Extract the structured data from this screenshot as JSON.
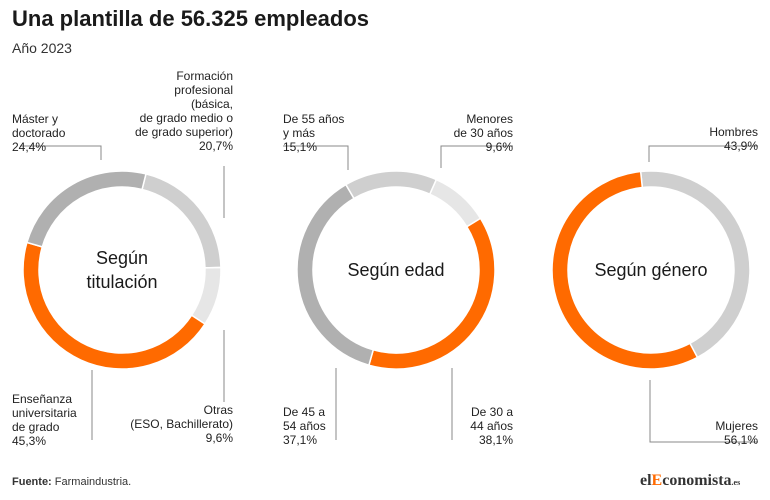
{
  "title": "Una plantilla de 56.325 empleados",
  "subtitle": "Año 2023",
  "source_label": "Fuente:",
  "source_text": "Farmaindustria.",
  "logo": {
    "prefix": "el",
    "accent": "E",
    "rest": "conomista",
    "suffix": ".es"
  },
  "colors": {
    "orange": "#ff6a00",
    "gray_dark": "#b0b0b0",
    "gray_mid": "#cfcfcf",
    "gray_light": "#e6e6e6",
    "leader_line": "#888888"
  },
  "chart_data": [
    {
      "type": "pie",
      "style": "donut",
      "center_label": [
        "Según",
        "titulación"
      ],
      "slices": [
        {
          "lines": [
            "Formación",
            "profesional",
            "(básica,",
            "de grado medio o",
            "de grado superior)",
            "20,7%"
          ],
          "value": 20.7,
          "color": "#cfcfcf"
        },
        {
          "lines": [
            "Otras",
            "(ESO, Bachillerato)",
            "9,6%"
          ],
          "value": 9.6,
          "color": "#e6e6e6"
        },
        {
          "lines": [
            "Enseñanza",
            "universitaria",
            "de grado",
            "45,3%"
          ],
          "value": 45.3,
          "color": "#ff6a00"
        },
        {
          "lines": [
            "Máster y",
            "doctorado",
            "24,4%"
          ],
          "value": 24.4,
          "color": "#b0b0b0"
        }
      ]
    },
    {
      "type": "pie",
      "style": "donut",
      "center_label": [
        "Según edad"
      ],
      "slices": [
        {
          "lines": [
            "Menores",
            "de 30 años",
            "9,6%"
          ],
          "value": 9.6,
          "color": "#e6e6e6"
        },
        {
          "lines": [
            "De 30 a",
            "44 años",
            "38,1%"
          ],
          "value": 38.1,
          "color": "#ff6a00"
        },
        {
          "lines": [
            "De 45 a",
            "54 años",
            "37,1%"
          ],
          "value": 37.1,
          "color": "#b0b0b0"
        },
        {
          "lines": [
            "De 55 años",
            "y más",
            "15,1%"
          ],
          "value": 15.1,
          "color": "#cfcfcf"
        }
      ]
    },
    {
      "type": "pie",
      "style": "donut",
      "center_label": [
        "Según género"
      ],
      "slices": [
        {
          "lines": [
            "Hombres",
            "43,9%"
          ],
          "value": 43.9,
          "color": "#cfcfcf"
        },
        {
          "lines": [
            "Mujeres",
            "56,1%"
          ],
          "value": 56.1,
          "color": "#ff6a00"
        }
      ]
    }
  ]
}
